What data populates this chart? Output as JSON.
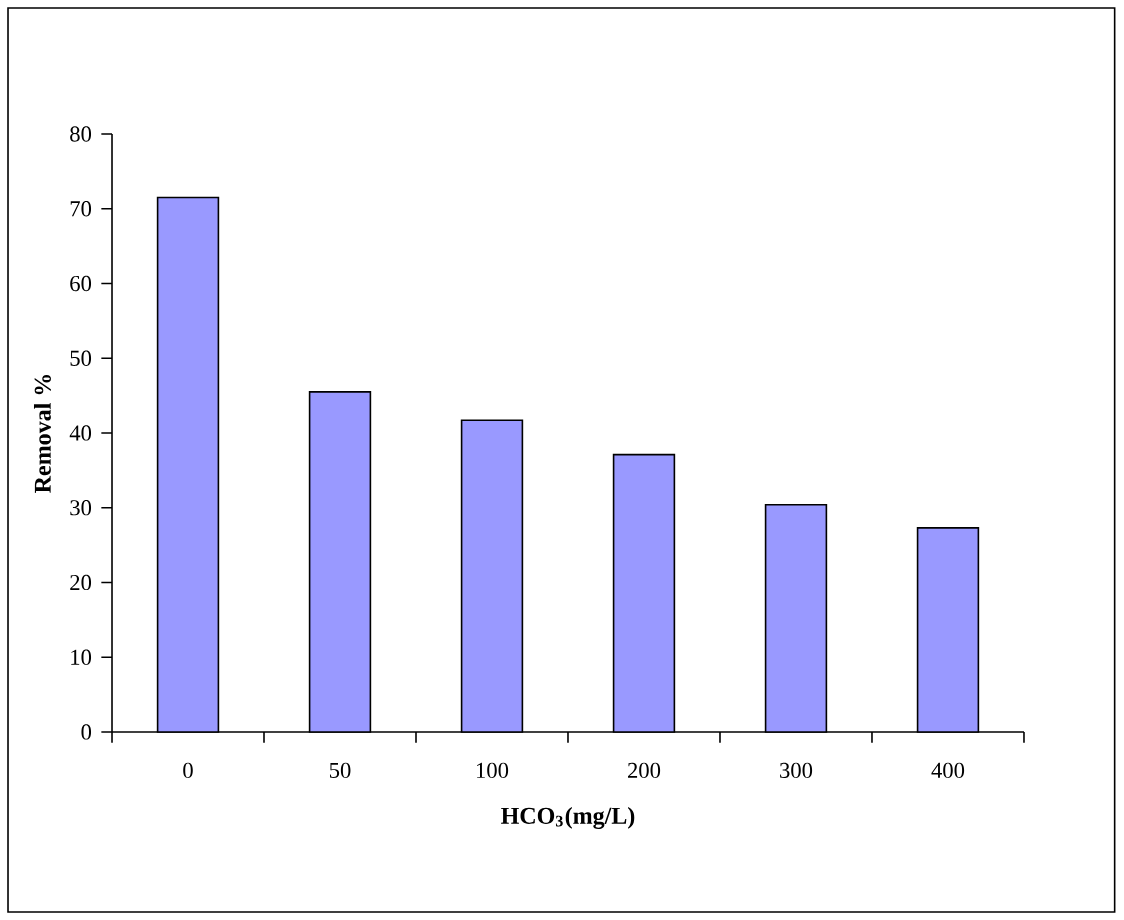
{
  "chart_data": {
    "type": "bar",
    "xlabel": "HCO$_{3}$(mg/L)",
    "ylabel": "Removal %",
    "categories": [
      "0",
      "50",
      "100",
      "200",
      "300",
      "400"
    ],
    "values": [
      71.5,
      45.5,
      41.7,
      37.1,
      30.4,
      27.3
    ],
    "color": "#9999ff",
    "ylim": [
      0,
      80
    ],
    "yticks": [
      0,
      10,
      20,
      30,
      40,
      50,
      60,
      70,
      80
    ],
    "grid": false
  }
}
